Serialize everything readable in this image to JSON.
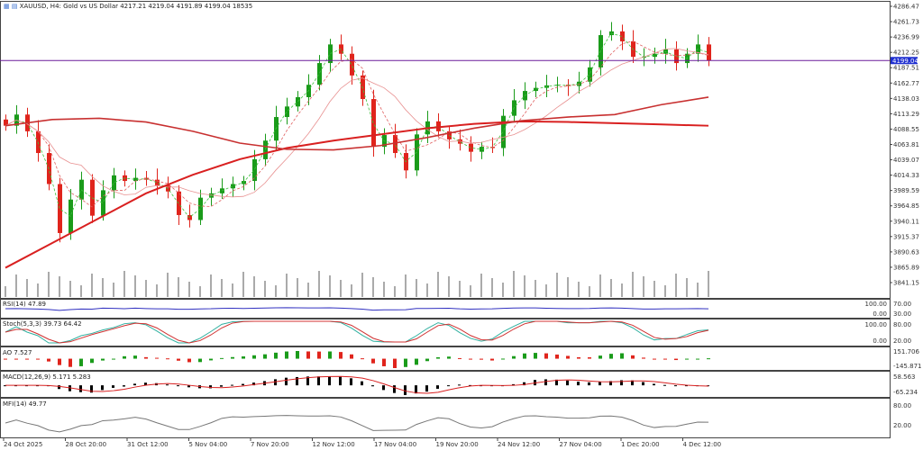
{
  "header": {
    "symbol": "XAUUSD, H4:",
    "description": "Gold vs US Dollar",
    "ohlc": "4217.21 4219.04 4191.89 4199.04",
    "volume": "18535"
  },
  "colors": {
    "bull": "#1a9b1a",
    "bear": "#e0241c",
    "hline": "#6a1b9a",
    "price_tag": "#1f2fd0",
    "ma_long": "#d92020",
    "rsi": "#3030c0",
    "stoch_main": "#30b0a0",
    "stoch_signal": "#d03030"
  },
  "chart_data": [
    {
      "type": "candlestick",
      "ylim": [
        3841.15,
        4286.47
      ],
      "price_ticks": [
        "4286.47",
        "4261.73",
        "4236.99",
        "4212.25",
        "4187.51",
        "4162.77",
        "4138.03",
        "4113.29",
        "4088.55",
        "4063.81",
        "4039.07",
        "4014.33",
        "3989.59",
        "3964.85",
        "3940.11",
        "3915.37",
        "3890.63",
        "3865.89",
        "3841.15"
      ],
      "current_price": "4199.04",
      "x_ticks": [
        "24 Oct 2025",
        "28 Oct 20:00",
        "31 Oct 12:00",
        "5 Nov 04:00",
        "7 Nov 20:00",
        "12 Nov 12:00",
        "17 Nov 04:00",
        "19 Nov 20:00",
        "24 Nov 12:00",
        "27 Nov 04:00",
        "1 Dec 20:00",
        "4 Dec 12:00"
      ],
      "closes": [
        4094,
        4112,
        4085,
        4050,
        4000,
        3921,
        3975,
        4007,
        3949,
        3990,
        4014,
        4005,
        4010,
        4007,
        3998,
        3988,
        3950,
        3942,
        3978,
        3985,
        3993,
        4000,
        4005,
        4040,
        4070,
        4108,
        4125,
        4140,
        4160,
        4195,
        4225,
        4210,
        4175,
        4137,
        4060,
        4079,
        4050,
        4022,
        4080,
        4101,
        4085,
        4072,
        4065,
        4052,
        4060,
        4058,
        4110,
        4135,
        4150,
        4155,
        4159,
        4160,
        4158,
        4165,
        4188,
        4240,
        4246,
        4230,
        4205,
        4205,
        4210,
        4217,
        4195,
        4210,
        4225,
        4199
      ],
      "ma_slow": [
        3865,
        3905,
        3945,
        3985,
        4015,
        4040,
        4058,
        4070,
        4080,
        4090,
        4097,
        4101,
        4100,
        4098,
        4096,
        4094
      ],
      "ma_mid": [
        4094,
        4104,
        4106,
        4100,
        4085,
        4066,
        4056,
        4055,
        4062,
        4075,
        4090,
        4102,
        4108,
        4112,
        4128,
        4140
      ]
    },
    {
      "type": "indicators",
      "rsi": {
        "label": "RSI(14) 47.89",
        "ticks": [
          "100.00",
          "70.00",
          "30.00",
          "0.00"
        ]
      },
      "stoch": {
        "label": "Stoch(5,3,3) 39.73 64.42",
        "ticks": [
          "100.00",
          "80.00",
          "20.00",
          "0.00"
        ]
      },
      "ao": {
        "label": "AO 7.527",
        "ticks": [
          "151.706",
          "-145.871"
        ]
      },
      "macd": {
        "label": "MACD(12,26,9) 5.171 5.283",
        "ticks": [
          "58.563",
          "-65.234"
        ]
      },
      "mfi": {
        "label": "MFI(14) 49.77",
        "ticks": [
          "80.00",
          "20.00"
        ]
      }
    }
  ]
}
